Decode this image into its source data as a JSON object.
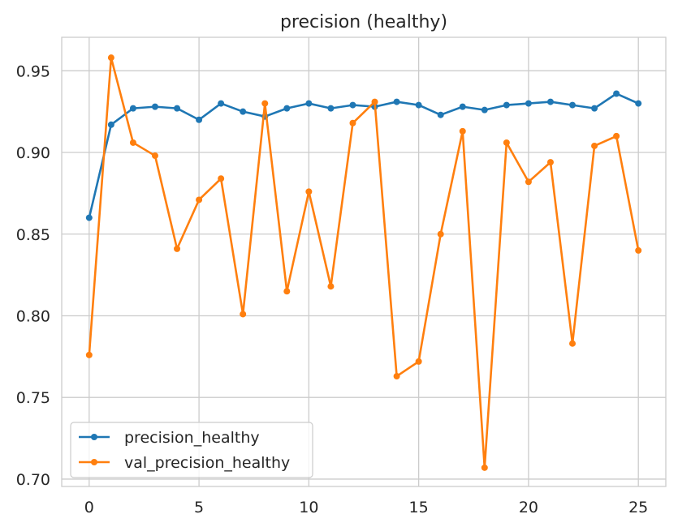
{
  "chart_data": {
    "type": "line",
    "title": "precision (healthy)",
    "xlabel": "",
    "ylabel": "",
    "xlim": [
      -1.25,
      26.25
    ],
    "ylim": [
      0.6955,
      0.9705
    ],
    "x_ticks": [
      0,
      5,
      10,
      15,
      20,
      25
    ],
    "x_tick_labels": [
      "0",
      "5",
      "10",
      "15",
      "20",
      "25"
    ],
    "y_ticks": [
      0.7,
      0.75,
      0.8,
      0.85,
      0.9,
      0.95
    ],
    "y_tick_labels": [
      "0.70",
      "0.75",
      "0.80",
      "0.85",
      "0.90",
      "0.95"
    ],
    "grid": true,
    "legend_position": "lower-left",
    "x": [
      0,
      1,
      2,
      3,
      4,
      5,
      6,
      7,
      8,
      9,
      10,
      11,
      12,
      13,
      14,
      15,
      16,
      17,
      18,
      19,
      20,
      21,
      22,
      23,
      24,
      25
    ],
    "series": [
      {
        "name": "precision_healthy",
        "color": "#1f77b4",
        "values": [
          0.86,
          0.917,
          0.927,
          0.928,
          0.927,
          0.92,
          0.93,
          0.925,
          0.922,
          0.927,
          0.93,
          0.927,
          0.929,
          0.928,
          0.931,
          0.929,
          0.923,
          0.928,
          0.926,
          0.929,
          0.93,
          0.931,
          0.929,
          0.927,
          0.936,
          0.93
        ]
      },
      {
        "name": "val_precision_healthy",
        "color": "#ff7f0e",
        "values": [
          0.776,
          0.958,
          0.906,
          0.898,
          0.841,
          0.871,
          0.884,
          0.801,
          0.93,
          0.815,
          0.876,
          0.818,
          0.918,
          0.931,
          0.763,
          0.772,
          0.85,
          0.913,
          0.707,
          0.906,
          0.882,
          0.894,
          0.783,
          0.904,
          0.91,
          0.84
        ]
      }
    ]
  }
}
